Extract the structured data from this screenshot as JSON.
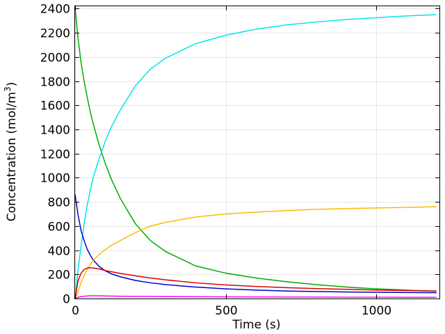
{
  "chart_data": {
    "type": "line",
    "title": "",
    "xlabel": "Time (s)",
    "ylabel": "Concentration (mol/m",
    "ylabel_superscript": "3",
    "ylabel_suffix": ")",
    "xlim": [
      0,
      1210
    ],
    "ylim": [
      0,
      2420
    ],
    "x_ticks": [
      0,
      500,
      1000
    ],
    "y_ticks": [
      0,
      200,
      400,
      600,
      800,
      1000,
      1200,
      1400,
      1600,
      1800,
      2000,
      2200,
      2400
    ],
    "grid": true,
    "legend": "none",
    "x": [
      0,
      10,
      20,
      30,
      40,
      50,
      60,
      80,
      100,
      120,
      150,
      200,
      250,
      300,
      400,
      500,
      600,
      700,
      800,
      900,
      1000,
      1100,
      1200
    ],
    "series": [
      {
        "color": "#00aa00",
        "values": [
          2400,
          2150,
          1950,
          1800,
          1670,
          1550,
          1450,
          1270,
          1120,
          990,
          830,
          620,
          480,
          390,
          270,
          210,
          170,
          140,
          115,
          95,
          80,
          70,
          60
        ]
      },
      {
        "color": "#00e5ee",
        "values": [
          0,
          240,
          440,
          620,
          770,
          890,
          1000,
          1160,
          1300,
          1420,
          1560,
          1760,
          1900,
          1990,
          2110,
          2180,
          2230,
          2265,
          2290,
          2310,
          2325,
          2340,
          2350
        ]
      },
      {
        "color": "#0000cc",
        "values": [
          860,
          690,
          560,
          480,
          410,
          360,
          320,
          265,
          230,
          205,
          180,
          150,
          130,
          115,
          95,
          80,
          70,
          62,
          58,
          54,
          52,
          50,
          48
        ]
      },
      {
        "color": "#ffbb00",
        "values": [
          0,
          60,
          130,
          190,
          240,
          280,
          315,
          365,
          405,
          440,
          480,
          545,
          600,
          630,
          675,
          700,
          715,
          728,
          738,
          745,
          750,
          755,
          760
        ]
      },
      {
        "color": "#dd0000",
        "values": [
          0,
          150,
          210,
          240,
          252,
          255,
          253,
          245,
          232,
          222,
          208,
          188,
          170,
          155,
          130,
          112,
          100,
          90,
          82,
          76,
          70,
          66,
          62
        ]
      },
      {
        "color": "#ff00ff",
        "values": [
          0,
          10,
          16,
          19,
          21,
          22,
          22,
          22,
          21,
          20,
          19,
          18,
          17,
          16,
          15,
          14,
          13,
          12,
          12,
          11,
          11,
          10,
          10
        ]
      }
    ]
  }
}
